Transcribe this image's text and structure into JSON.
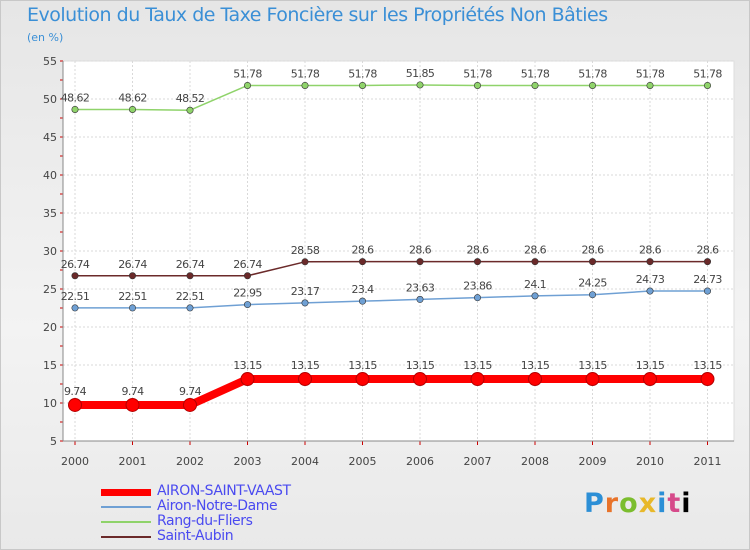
{
  "title": "Evolution du Taux de Taxe Foncière sur les Propriétés Non Bâties",
  "subtitle": "(en %)",
  "logo_text": "Proxiti",
  "chart_data": {
    "type": "line",
    "categories": [
      "2000",
      "2001",
      "2002",
      "2003",
      "2004",
      "2005",
      "2006",
      "2007",
      "2008",
      "2009",
      "2010",
      "2011"
    ],
    "ylim": [
      5,
      55
    ],
    "yticks": [
      5,
      10,
      15,
      20,
      25,
      30,
      35,
      40,
      45,
      50,
      55
    ],
    "grid": true,
    "legend_position": "bottom-left",
    "series": [
      {
        "name": "AIRON-SAINT-VAAST",
        "color": "#ff0000",
        "bold": true,
        "values": [
          9.74,
          9.74,
          9.74,
          13.15,
          13.15,
          13.15,
          13.15,
          13.15,
          13.15,
          13.15,
          13.15,
          13.15
        ],
        "labels": [
          "9.74",
          "9.74",
          "9.74",
          "13.15",
          "13.15",
          "13.15",
          "13.15",
          "13.15",
          "13.15",
          "13.15",
          "13.15",
          "13.15"
        ]
      },
      {
        "name": "Airon-Notre-Dame",
        "color": "#6fa0d4",
        "bold": false,
        "values": [
          22.51,
          22.51,
          22.51,
          22.95,
          23.17,
          23.4,
          23.63,
          23.86,
          24.1,
          24.25,
          24.73,
          24.73
        ],
        "labels": [
          "22.51",
          "22.51",
          "22.51",
          "22.95",
          "23.17",
          "23.4",
          "23.63",
          "23.86",
          "24.1",
          "24.25",
          "24.73",
          "24.73"
        ]
      },
      {
        "name": "Rang-du-Fliers",
        "color": "#8fd36a",
        "bold": false,
        "values": [
          48.62,
          48.62,
          48.52,
          51.78,
          51.78,
          51.78,
          51.85,
          51.78,
          51.78,
          51.78,
          51.78,
          51.78
        ],
        "labels": [
          "48.62",
          "48.62",
          "48.52",
          "51.78",
          "51.78",
          "51.78",
          "51.85",
          "51.78",
          "51.78",
          "51.78",
          "51.78",
          "51.78"
        ]
      },
      {
        "name": "Saint-Aubin",
        "color": "#6b2a2a",
        "bold": false,
        "values": [
          26.74,
          26.74,
          26.74,
          26.74,
          28.58,
          28.6,
          28.6,
          28.6,
          28.6,
          28.6,
          28.6,
          28.6
        ],
        "labels": [
          "26.74",
          "26.74",
          "26.74",
          "26.74",
          "28.58",
          "28.6",
          "28.6",
          "28.6",
          "28.6",
          "28.6",
          "28.6",
          "28.6"
        ]
      }
    ]
  }
}
